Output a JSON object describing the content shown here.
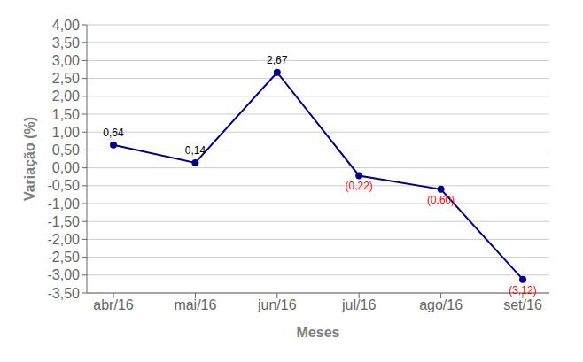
{
  "chart_data": {
    "type": "line",
    "categories": [
      "abr/16",
      "mai/16",
      "jun/16",
      "jul/16",
      "ago/16",
      "set/16"
    ],
    "values": [
      0.64,
      0.14,
      2.67,
      -0.22,
      -0.6,
      -3.12
    ],
    "value_labels": [
      "0,64",
      "0,14",
      "2,67",
      "(0,22)",
      "(0,60)",
      "(3,12)"
    ],
    "data_labels": true,
    "colors": [
      "#000000",
      "#000000",
      "#000000",
      "#ff0000",
      "#ff0000",
      "#ff0000"
    ],
    "color": "#00008B",
    "marker": "o",
    "xlabel": "Meses",
    "ylabel": "Variação (%)",
    "ylim": [
      -3.5,
      4.0
    ],
    "yticks": [
      {
        "value": -3.5,
        "label": "-3,50"
      },
      {
        "value": -3.0,
        "label": "-3,00"
      },
      {
        "value": -2.5,
        "label": "-2,50"
      },
      {
        "value": -2.0,
        "label": "-2,00"
      },
      {
        "value": -1.5,
        "label": "-1,50"
      },
      {
        "value": -1.0,
        "label": "-1,00"
      },
      {
        "value": -0.5,
        "label": "-0,50"
      },
      {
        "value": 0.0,
        "label": "0,00"
      },
      {
        "value": 0.5,
        "label": "0,50"
      },
      {
        "value": 1.0,
        "label": "1,00"
      },
      {
        "value": 1.5,
        "label": "1,50"
      },
      {
        "value": 2.0,
        "label": "2,00"
      },
      {
        "value": 2.5,
        "label": "2,50"
      },
      {
        "value": 3.0,
        "label": "3,00"
      },
      {
        "value": 3.5,
        "label": "3,50"
      },
      {
        "value": 4.0,
        "label": "4,00"
      }
    ],
    "grid": true
  }
}
